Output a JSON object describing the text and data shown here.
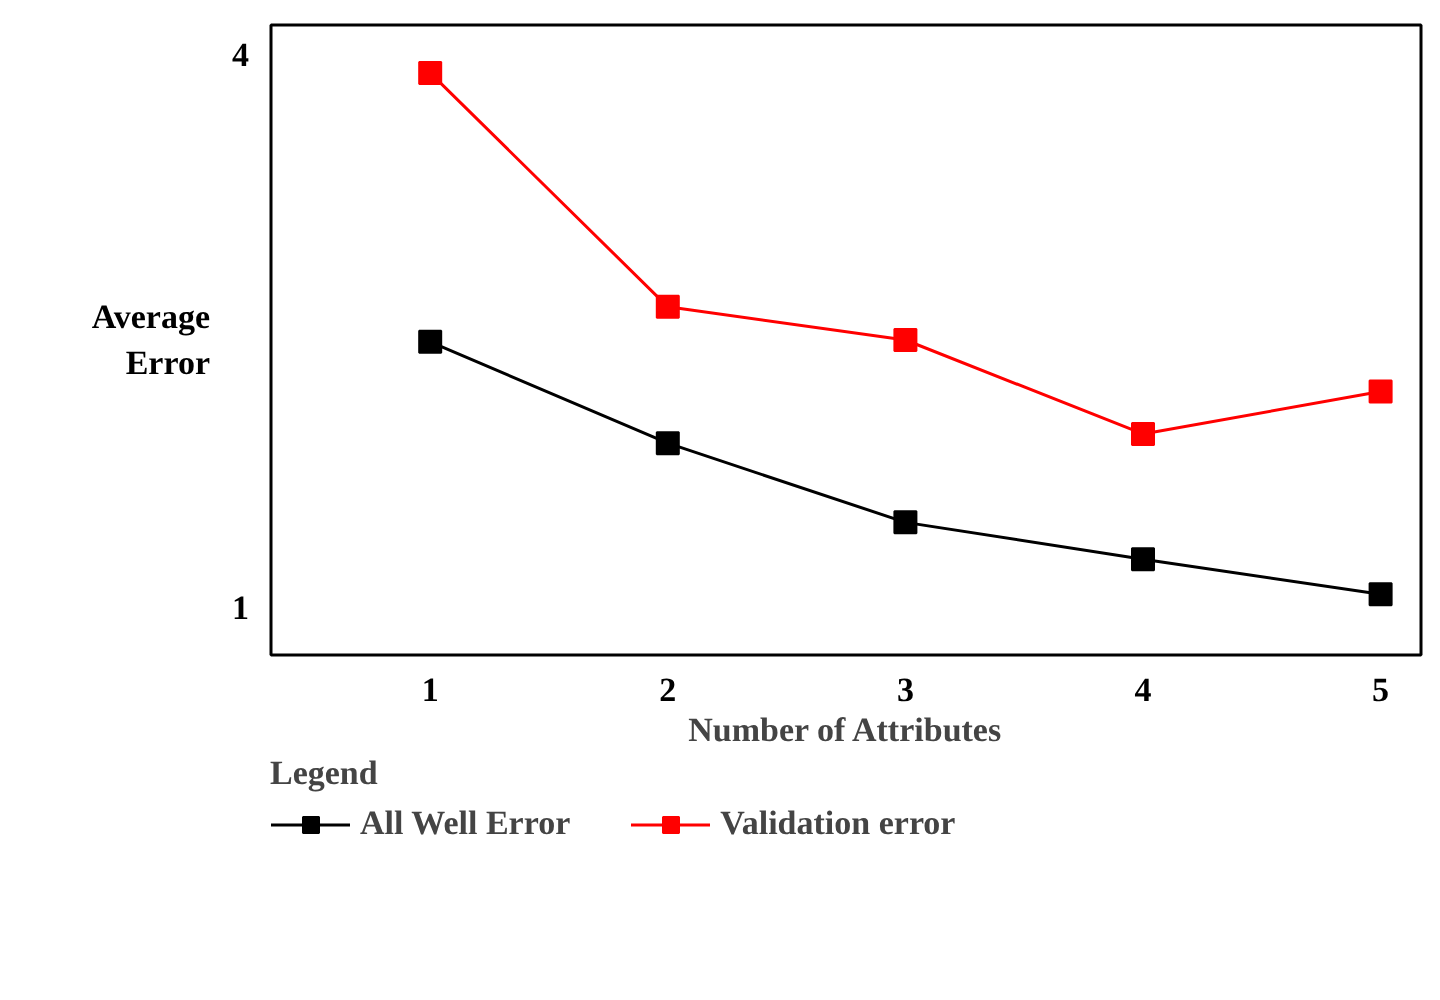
{
  "chart_data": {
    "type": "line",
    "xlabel": "Number of Attributes",
    "ylabel": "Average Error",
    "legend_title": "Legend",
    "x": [
      1,
      2,
      3,
      4,
      5
    ],
    "series": [
      {
        "name": "All Well Error",
        "color": "#000000",
        "values": [
          2.44,
          1.89,
          1.46,
          1.26,
          1.07
        ]
      },
      {
        "name": "Validation error",
        "color": "#ff0000",
        "values": [
          3.9,
          2.63,
          2.45,
          1.94,
          2.17
        ]
      }
    ],
    "xlim": [
      0.33,
      5.17
    ],
    "ylim": [
      0.74,
      4.16
    ],
    "xticks": [
      1,
      2,
      3,
      4,
      5
    ],
    "yticks": [
      1,
      4
    ],
    "grid": false,
    "legend": "bottom",
    "marker": "square",
    "line_style": "solid"
  }
}
